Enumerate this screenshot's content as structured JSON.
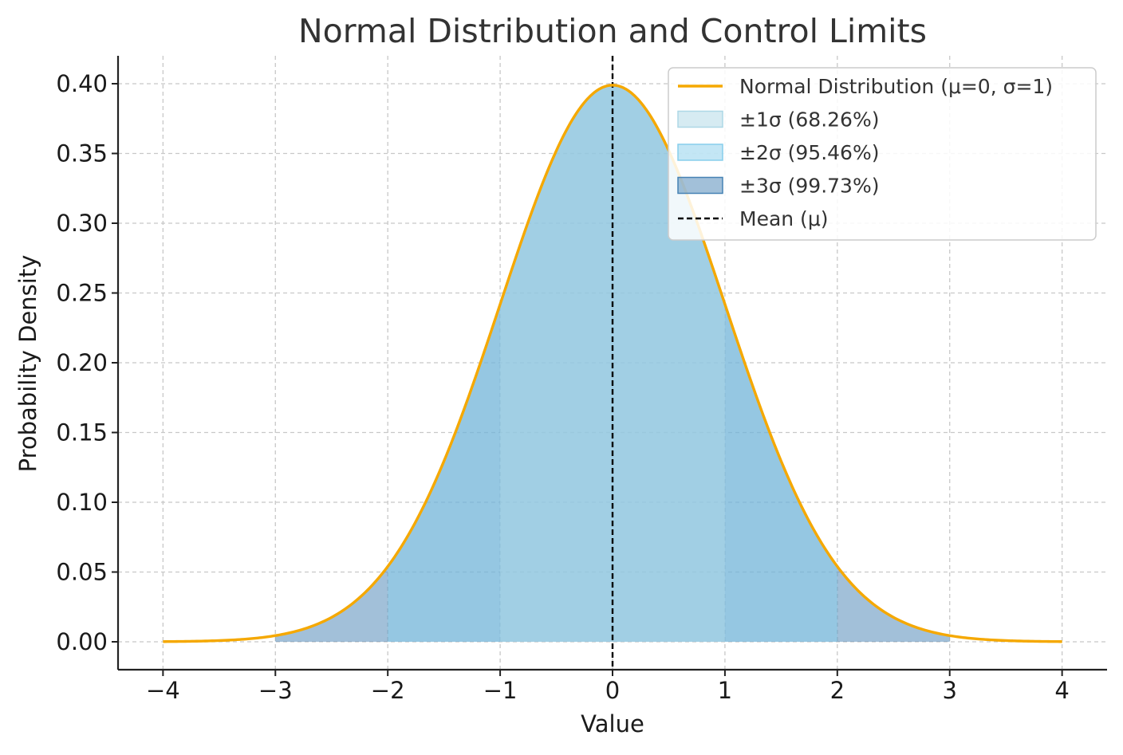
{
  "chart_data": {
    "type": "area",
    "title": "Normal Distribution and Control Limits",
    "xlabel": "Value",
    "ylabel": "Probability Density",
    "xlim": [
      -4.4,
      4.4
    ],
    "ylim": [
      -0.02,
      0.42
    ],
    "x_ticks": [
      -4,
      -3,
      -2,
      -1,
      0,
      1,
      2,
      3,
      4
    ],
    "x_tick_labels": [
      "−4",
      "−3",
      "−2",
      "−1",
      "0",
      "1",
      "2",
      "3",
      "4"
    ],
    "y_ticks": [
      0.0,
      0.05,
      0.1,
      0.15,
      0.2,
      0.25,
      0.3,
      0.35,
      0.4
    ],
    "y_tick_labels": [
      "0.00",
      "0.05",
      "0.10",
      "0.15",
      "0.20",
      "0.25",
      "0.30",
      "0.35",
      "0.40"
    ],
    "grid": true,
    "legend_position": "top-right",
    "mu": 0,
    "sigma": 1,
    "curve": {
      "x": [
        -4.0,
        -3.5,
        -3.0,
        -2.5,
        -2.0,
        -1.5,
        -1.0,
        -0.5,
        0.0,
        0.5,
        1.0,
        1.5,
        2.0,
        2.5,
        3.0,
        3.5,
        4.0
      ],
      "y": [
        0.0001,
        0.0009,
        0.0044,
        0.0175,
        0.054,
        0.1295,
        0.242,
        0.3521,
        0.3989,
        0.3521,
        0.242,
        0.1295,
        0.054,
        0.0175,
        0.0044,
        0.0009,
        0.0001
      ]
    },
    "series": [
      {
        "name": "Normal Distribution (μ=0, σ=1)",
        "kind": "line",
        "color": "#f5a800",
        "x_range": [
          -4,
          4
        ]
      },
      {
        "name": "±1σ (68.26%)",
        "kind": "band",
        "color": "#add8e6",
        "opacity": 0.5,
        "x_range": [
          -1,
          1
        ]
      },
      {
        "name": "±2σ (95.46%)",
        "kind": "band",
        "color": "#87ceeb",
        "opacity": 0.5,
        "x_range": [
          -2,
          2
        ]
      },
      {
        "name": "±3σ (99.73%)",
        "kind": "band",
        "color": "#4682b4",
        "opacity": 0.5,
        "x_range": [
          -3,
          3
        ]
      },
      {
        "name": "Mean (μ)",
        "kind": "vline",
        "color": "#000000",
        "x": 0
      }
    ]
  }
}
